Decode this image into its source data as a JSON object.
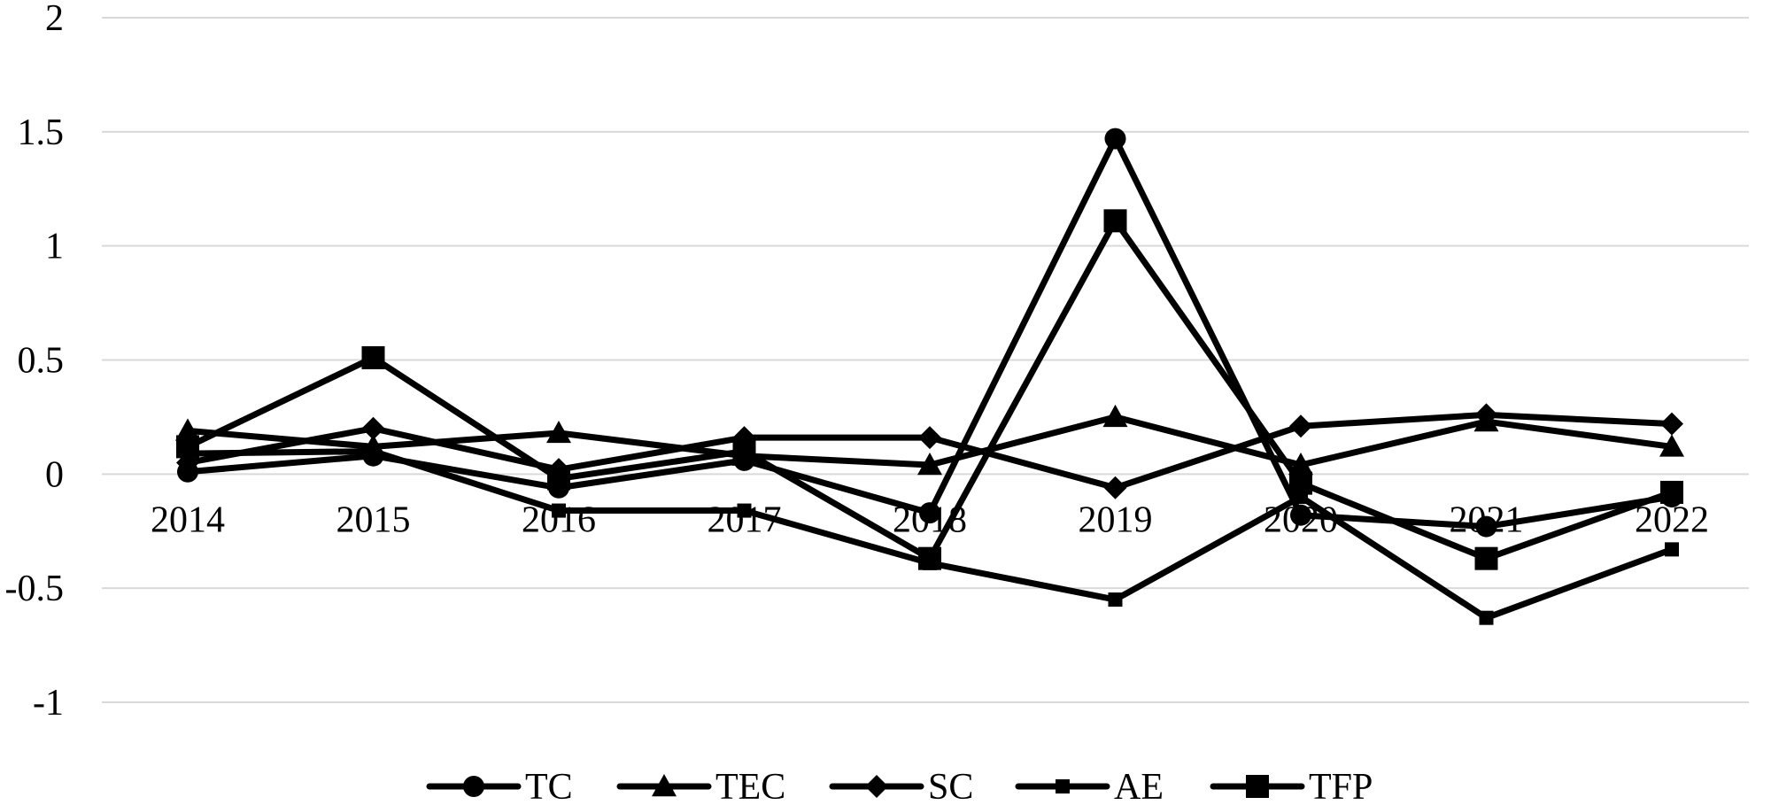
{
  "chart_data": {
    "type": "line",
    "title": "",
    "xlabel": "",
    "ylabel": "",
    "categories": [
      "2014",
      "2015",
      "2016",
      "2017",
      "2018",
      "2019",
      "2020",
      "2021",
      "2022"
    ],
    "ylim": [
      -1,
      2
    ],
    "yticks": [
      2,
      1.5,
      1,
      0.5,
      0,
      -0.5,
      -1
    ],
    "ytick_labels": [
      "2",
      "1.5",
      "1",
      "0.5",
      "0",
      "-0.5",
      "-1"
    ],
    "grid": true,
    "legend_position": "bottom",
    "series": [
      {
        "name": "TC",
        "marker": "circle",
        "color": "#000000",
        "values": [
          0.01,
          0.08,
          -0.06,
          0.06,
          -0.17,
          1.47,
          -0.18,
          -0.23,
          -0.1
        ]
      },
      {
        "name": "TEC",
        "marker": "triangle",
        "color": "#000000",
        "values": [
          0.19,
          0.12,
          0.18,
          0.08,
          0.04,
          0.25,
          0.04,
          0.23,
          0.12
        ]
      },
      {
        "name": "SC",
        "marker": "diamond",
        "color": "#000000",
        "values": [
          0.05,
          0.2,
          0.02,
          0.16,
          0.16,
          -0.06,
          0.21,
          0.26,
          0.22
        ]
      },
      {
        "name": "AE",
        "marker": "small-square",
        "color": "#000000",
        "values": [
          0.09,
          0.1,
          -0.16,
          -0.16,
          -0.39,
          -0.55,
          -0.1,
          -0.63,
          -0.33
        ]
      },
      {
        "name": "TFP",
        "marker": "square",
        "color": "#000000",
        "values": [
          0.12,
          0.51,
          -0.02,
          0.1,
          -0.37,
          1.11,
          -0.04,
          -0.37,
          -0.08
        ]
      }
    ]
  }
}
